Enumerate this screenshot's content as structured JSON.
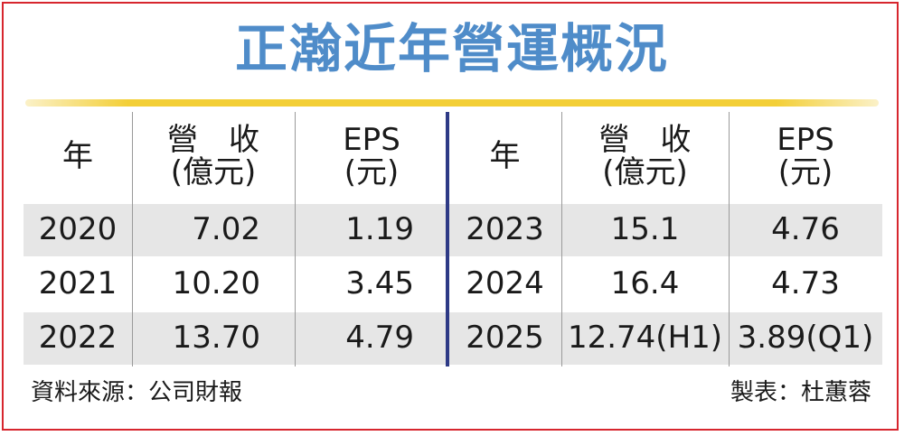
{
  "title": "正瀚近年營運概況",
  "headers": {
    "left": {
      "year": "年",
      "revenue_line1": "營　收",
      "revenue_line2": "(億元)",
      "eps_line1": "EPS",
      "eps_line2": "(元)"
    },
    "right": {
      "year": "年",
      "revenue_line1": "營　收",
      "revenue_line2": "(億元)",
      "eps_line1": "EPS",
      "eps_line2": "(元)"
    }
  },
  "rows": [
    {
      "left": {
        "year": "2020",
        "revenue": "7.02",
        "eps": "1.19"
      },
      "right": {
        "year": "2023",
        "revenue": "15.1",
        "eps": "4.76"
      }
    },
    {
      "left": {
        "year": "2021",
        "revenue": "10.20",
        "eps": "3.45"
      },
      "right": {
        "year": "2024",
        "revenue": "16.4",
        "eps": "4.73"
      }
    },
    {
      "left": {
        "year": "2022",
        "revenue": "13.70",
        "eps": "4.79"
      },
      "right": {
        "year": "2025",
        "revenue": "12.74(H1)",
        "eps": "3.89(Q1)"
      }
    }
  ],
  "footer": {
    "source": "資料來源：公司財報",
    "credit": "製表：杜蕙蓉"
  },
  "colors": {
    "title": "#4f8cc9",
    "gold_bar": "#f3cf37",
    "frame": "#d7262e",
    "divider": "#2e3a86",
    "row_shade": "#e6e6e6"
  }
}
